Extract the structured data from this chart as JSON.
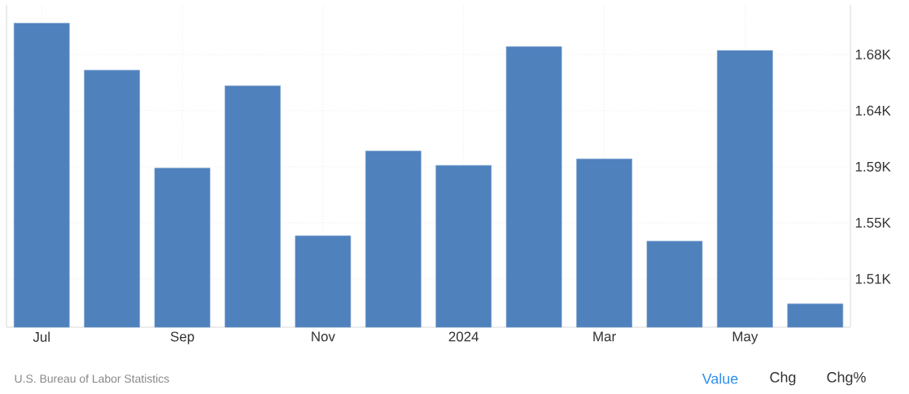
{
  "chart_data": {
    "type": "bar",
    "categories": [
      "Jul",
      null,
      "Sep",
      null,
      "Nov",
      null,
      "2024",
      null,
      "Mar",
      null,
      "May",
      null
    ],
    "values": [
      1703,
      1667,
      1592,
      1655,
      1540,
      1605,
      1594,
      1685,
      1599,
      1536,
      1682,
      1488
    ],
    "color": "#4f81bd",
    "ylim": [
      1470,
      1717
    ],
    "yticks": [
      {
        "value": 1507,
        "label": "1.51K"
      },
      {
        "value": 1550,
        "label": "1.55K"
      },
      {
        "value": 1593,
        "label": "1.59K"
      },
      {
        "value": 1636,
        "label": "1.64K"
      },
      {
        "value": 1679,
        "label": "1.68K"
      }
    ],
    "grid": true,
    "annotations": [
      "U.S. Bureau of Labor Statistics",
      "Value",
      "Chg",
      "Chg%"
    ]
  }
}
